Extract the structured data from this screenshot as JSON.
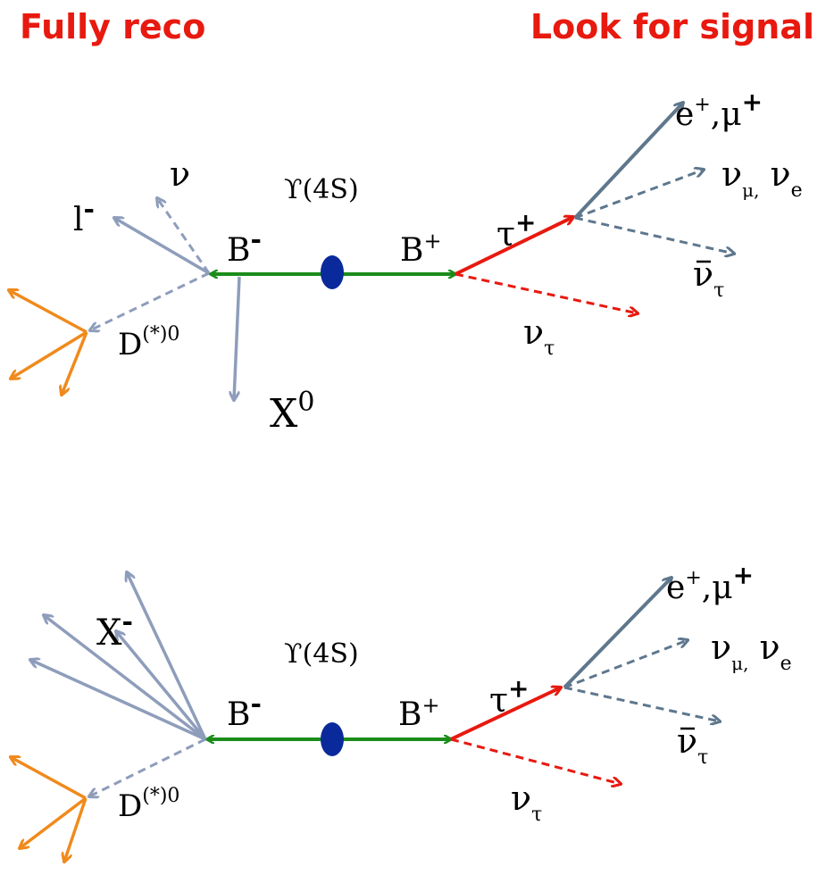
{
  "titles": {
    "left": "Fully reco",
    "right": "Look for signal"
  },
  "colors": {
    "title": "#e8190f",
    "green": "#1a8c1a",
    "red": "#e8190f",
    "gray": "#8e9dbb",
    "orange": "#f08a1c",
    "slate": "#5e778d",
    "ellipse": "#0a2a9c"
  },
  "top": {
    "upsilon": "ϒ(4S)",
    "b_left": "B",
    "b_left_sup": "-",
    "b_right": "B",
    "b_right_sup": "+",
    "tau": "τ",
    "tau_sup": "+",
    "nu_tau": "ν",
    "nu_tau_sub": "τ",
    "lepton": "e",
    "lepton_sup": "+",
    "lepton_sep": ",μ",
    "lepton2_sup": "+",
    "nu_mu": "ν",
    "nu_mu_sub": "μ,",
    "nu_e": " ν",
    "nu_e_sub": "e",
    "nu_bar": "ν",
    "nu_bar_sub": "τ",
    "tag_lepton": "l",
    "tag_lepton_sup": "-",
    "tag_nu": "ν",
    "d_meson": "D",
    "d_meson_sup": "(*)0",
    "x0": "X",
    "x0_sup": "0"
  },
  "bottom": {
    "upsilon": "ϒ(4S)",
    "b_left": "B",
    "b_left_sup": "-",
    "b_right": "B",
    "b_right_sup": "+",
    "tau": "τ",
    "tau_sup": "+",
    "nu_tau": "ν",
    "nu_tau_sub": "τ",
    "lepton": "e",
    "lepton_sup": "+",
    "lepton_sep": ",μ",
    "lepton2_sup": "+",
    "nu_mu": "ν",
    "nu_mu_sub": "μ,",
    "nu_e": " ν",
    "nu_e_sub": "e",
    "nu_bar": "ν",
    "nu_bar_sub": "τ",
    "x_minus": "X",
    "x_minus_sup": "-",
    "d_meson": "D",
    "d_meson_sup": "(*)0"
  }
}
